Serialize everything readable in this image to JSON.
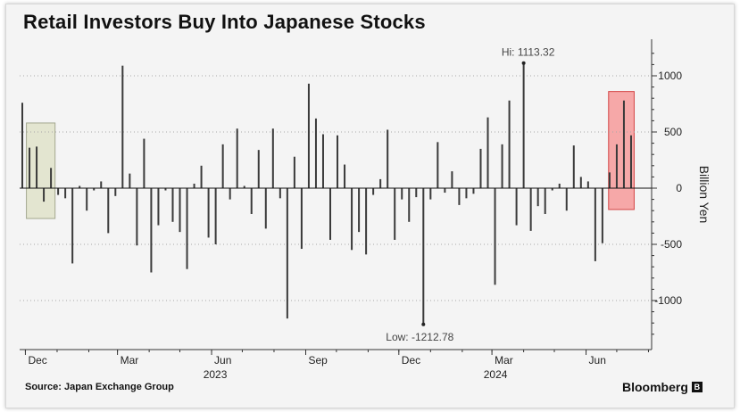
{
  "header": {
    "title": "Retail Investors Buy Into Japanese Stocks"
  },
  "footer": {
    "source": "Source: Japan Exchange Group",
    "brand": "Bloomberg"
  },
  "colors": {
    "bar": "#3a3a3a",
    "zero_line": "#111111",
    "dotted_grid": "#a8a8a8",
    "highlight_left_fill": "#e3e5cf",
    "highlight_left_stroke": "#9ea38a",
    "highlight_right_fill": "#f7a4a4",
    "highlight_right_stroke": "#d23b3b",
    "background": "#f4f4f4"
  },
  "chart_data": {
    "type": "bar",
    "title": "Retail Investors Buy Into Japanese Stocks",
    "ylabel": "Billion Yen",
    "xlabel": "",
    "ylim": [
      -1400,
      1300
    ],
    "yticks": [
      -1000,
      -500,
      0,
      500,
      1000
    ],
    "ytick_labels": [
      "-1000",
      "-500",
      "0",
      "500",
      "1000"
    ],
    "grid": "dotted horizontal",
    "x_start": "2022-11-28",
    "x_end": "2024-07-22",
    "month_ticks": [
      {
        "date": "2022-12-01",
        "label": "Dec"
      },
      {
        "date": "2023-03-01",
        "label": "Mar"
      },
      {
        "date": "2023-06-01",
        "label": "Jun"
      },
      {
        "date": "2023-09-01",
        "label": "Sep"
      },
      {
        "date": "2023-12-01",
        "label": "Dec"
      },
      {
        "date": "2024-03-01",
        "label": "Mar"
      },
      {
        "date": "2024-06-01",
        "label": "Jun"
      }
    ],
    "year_labels": [
      {
        "date": "2023-06-01",
        "label": "2023"
      },
      {
        "date": "2024-03-01",
        "label": "2024"
      }
    ],
    "series": [
      {
        "values": [
          {
            "date": "2022-11-28",
            "value": 760
          },
          {
            "date": "2022-12-05",
            "value": 360
          },
          {
            "date": "2022-12-12",
            "value": 370
          },
          {
            "date": "2022-12-19",
            "value": -120
          },
          {
            "date": "2022-12-26",
            "value": 180
          },
          {
            "date": "2023-01-02",
            "value": -60
          },
          {
            "date": "2023-01-09",
            "value": -90
          },
          {
            "date": "2023-01-16",
            "value": -670
          },
          {
            "date": "2023-01-23",
            "value": 20
          },
          {
            "date": "2023-01-30",
            "value": -200
          },
          {
            "date": "2023-02-06",
            "value": -20
          },
          {
            "date": "2023-02-13",
            "value": 60
          },
          {
            "date": "2023-02-20",
            "value": -400
          },
          {
            "date": "2023-02-27",
            "value": -70
          },
          {
            "date": "2023-03-06",
            "value": 1090
          },
          {
            "date": "2023-03-13",
            "value": 130
          },
          {
            "date": "2023-03-20",
            "value": -510
          },
          {
            "date": "2023-03-27",
            "value": 440
          },
          {
            "date": "2023-04-03",
            "value": -750
          },
          {
            "date": "2023-04-10",
            "value": -330
          },
          {
            "date": "2023-04-17",
            "value": -20
          },
          {
            "date": "2023-04-24",
            "value": -300
          },
          {
            "date": "2023-05-01",
            "value": -390
          },
          {
            "date": "2023-05-08",
            "value": -720
          },
          {
            "date": "2023-05-15",
            "value": 40
          },
          {
            "date": "2023-05-22",
            "value": 200
          },
          {
            "date": "2023-05-29",
            "value": -440
          },
          {
            "date": "2023-06-05",
            "value": -500
          },
          {
            "date": "2023-06-12",
            "value": 390
          },
          {
            "date": "2023-06-19",
            "value": -100
          },
          {
            "date": "2023-06-26",
            "value": 530
          },
          {
            "date": "2023-07-03",
            "value": 20
          },
          {
            "date": "2023-07-10",
            "value": -230
          },
          {
            "date": "2023-07-17",
            "value": 340
          },
          {
            "date": "2023-07-24",
            "value": -360
          },
          {
            "date": "2023-07-31",
            "value": 530
          },
          {
            "date": "2023-08-07",
            "value": -90
          },
          {
            "date": "2023-08-14",
            "value": -1160
          },
          {
            "date": "2023-08-21",
            "value": 280
          },
          {
            "date": "2023-08-28",
            "value": -540
          },
          {
            "date": "2023-09-04",
            "value": 930
          },
          {
            "date": "2023-09-11",
            "value": 620
          },
          {
            "date": "2023-09-18",
            "value": 480
          },
          {
            "date": "2023-09-25",
            "value": -460
          },
          {
            "date": "2023-10-02",
            "value": 470
          },
          {
            "date": "2023-10-09",
            "value": 210
          },
          {
            "date": "2023-10-16",
            "value": -550
          },
          {
            "date": "2023-10-23",
            "value": -390
          },
          {
            "date": "2023-10-30",
            "value": -590
          },
          {
            "date": "2023-11-06",
            "value": -60
          },
          {
            "date": "2023-11-13",
            "value": 80
          },
          {
            "date": "2023-11-20",
            "value": 520
          },
          {
            "date": "2023-11-27",
            "value": -460
          },
          {
            "date": "2023-12-04",
            "value": -100
          },
          {
            "date": "2023-12-11",
            "value": -300
          },
          {
            "date": "2023-12-18",
            "value": -80
          },
          {
            "date": "2023-12-25",
            "value": -1213
          },
          {
            "date": "2024-01-01",
            "value": -100
          },
          {
            "date": "2024-01-08",
            "value": 410
          },
          {
            "date": "2024-01-15",
            "value": -40
          },
          {
            "date": "2024-01-22",
            "value": 150
          },
          {
            "date": "2024-01-29",
            "value": -150
          },
          {
            "date": "2024-02-05",
            "value": -90
          },
          {
            "date": "2024-02-12",
            "value": -50
          },
          {
            "date": "2024-02-19",
            "value": 350
          },
          {
            "date": "2024-02-26",
            "value": 630
          },
          {
            "date": "2024-03-04",
            "value": -860
          },
          {
            "date": "2024-03-11",
            "value": 390
          },
          {
            "date": "2024-03-18",
            "value": 780
          },
          {
            "date": "2024-03-25",
            "value": -330
          },
          {
            "date": "2024-04-01",
            "value": 1113.32
          },
          {
            "date": "2024-04-08",
            "value": -380
          },
          {
            "date": "2024-04-15",
            "value": -160
          },
          {
            "date": "2024-04-22",
            "value": -230
          },
          {
            "date": "2024-04-29",
            "value": -20
          },
          {
            "date": "2024-05-06",
            "value": 40
          },
          {
            "date": "2024-05-13",
            "value": -200
          },
          {
            "date": "2024-05-20",
            "value": 380
          },
          {
            "date": "2024-05-27",
            "value": 100
          },
          {
            "date": "2024-06-03",
            "value": 60
          },
          {
            "date": "2024-06-10",
            "value": -650
          },
          {
            "date": "2024-06-17",
            "value": -490
          },
          {
            "date": "2024-06-24",
            "value": 140
          },
          {
            "date": "2024-07-01",
            "value": 390
          },
          {
            "date": "2024-07-08",
            "value": 780
          },
          {
            "date": "2024-07-15",
            "value": 470
          }
        ]
      }
    ],
    "annotations": [
      {
        "text": "Hi: 1113.32",
        "date": "2024-04-01",
        "value": 1113.32
      },
      {
        "text": "Low: -1212.78",
        "date": "2023-12-25",
        "value": -1212.78
      }
    ],
    "highlights": [
      {
        "start": "2022-12-02",
        "end": "2022-12-30",
        "ymin": -270,
        "ymax": 580,
        "style": "left"
      },
      {
        "start": "2024-06-23",
        "end": "2024-07-18",
        "ymin": -190,
        "ymax": 860,
        "style": "right"
      }
    ]
  }
}
